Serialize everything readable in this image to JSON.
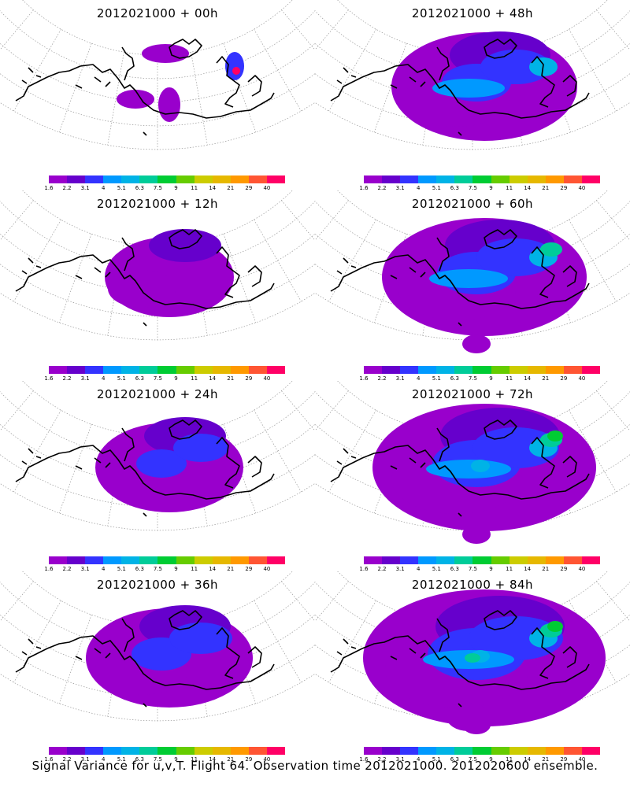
{
  "panels": [
    {
      "title": "2012021000 + 00h",
      "col": 0,
      "row": 0,
      "level": 0
    },
    {
      "title": "2012021000 + 48h",
      "col": 1,
      "row": 0,
      "level": 4
    },
    {
      "title": "2012021000 + 12h",
      "col": 0,
      "row": 1,
      "level": 1
    },
    {
      "title": "2012021000 + 60h",
      "col": 1,
      "row": 1,
      "level": 5
    },
    {
      "title": "2012021000 + 24h",
      "col": 0,
      "row": 2,
      "level": 2
    },
    {
      "title": "2012021000 + 72h",
      "col": 1,
      "row": 2,
      "level": 6
    },
    {
      "title": "2012021000 + 36h",
      "col": 0,
      "row": 3,
      "level": 3
    },
    {
      "title": "2012021000 + 84h",
      "col": 1,
      "row": 3,
      "level": 7
    }
  ],
  "colorbar": {
    "labels": [
      "1.6",
      "2.2",
      "3.1",
      "4",
      "5.1",
      "6.3",
      "7.5",
      "9",
      "11",
      "14",
      "21",
      "29",
      "40"
    ],
    "colors": [
      "#9900cc",
      "#6600cc",
      "#3333ff",
      "#0099ff",
      "#00b3e6",
      "#00cc99",
      "#00cc33",
      "#66cc00",
      "#cccc00",
      "#e6b800",
      "#ff9900",
      "#ff5533",
      "#ff0066"
    ]
  },
  "caption": "Signal Variance for u,v,T. Flight 64. Observation time 2012021000. 2012020600 ensemble."
}
